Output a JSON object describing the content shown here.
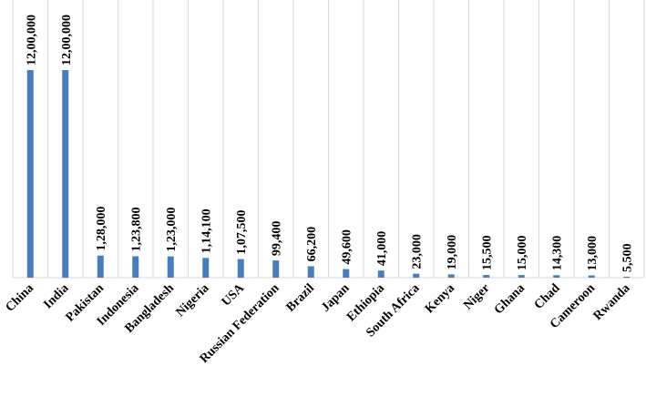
{
  "chart_data": {
    "type": "bar",
    "categories": [
      "China",
      "India",
      "Pakistan",
      "Indonesia",
      "Bangladesh",
      "Nigeria",
      "USA",
      "Russian Federation",
      "Brazil",
      "Japan",
      "Ethiopia",
      "South Africa",
      "Kenya",
      "Niger",
      "Ghana",
      "Chad",
      "Cameroon",
      "Rwanda"
    ],
    "values": [
      1200000,
      1200000,
      128000,
      123800,
      123000,
      114100,
      107500,
      99400,
      66200,
      49600,
      41000,
      23000,
      19000,
      15500,
      15000,
      14300,
      13000,
      5500
    ],
    "value_labels": [
      "12,00,000",
      "12,00,000",
      "1,28,000",
      "1,23,800",
      "1,23,000",
      "1,14,100",
      "1,07,500",
      "99,400",
      "66,200",
      "49,600",
      "41,000",
      "23,000",
      "19,000",
      "15,500",
      "15,000",
      "14,300",
      "13,000",
      "5,500"
    ],
    "color": "#4a7ebb",
    "grid": true
  }
}
